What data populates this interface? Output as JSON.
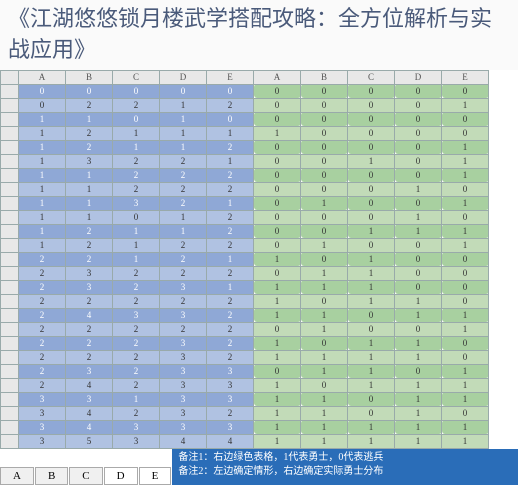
{
  "title": "《江湖悠悠锁月楼武学搭配攻略：全方位解析与实战应用》",
  "column_headers_top": [
    "A",
    "B",
    "C",
    "D",
    "E",
    "A",
    "B",
    "C",
    "D",
    "E"
  ],
  "column_headers_bottom": [
    "A",
    "B",
    "C",
    "D",
    "E"
  ],
  "colors": {
    "blue": "#8fa8d6",
    "lblue": "#b0c2e2",
    "green": "#a8d0a0",
    "lgreen": "#c2dbb8",
    "header_bg": "#e8e8e8",
    "footer_bg": "#2a6db8"
  },
  "left_rows": [
    [
      0,
      0,
      0,
      0,
      0
    ],
    [
      0,
      2,
      2,
      1,
      2
    ],
    [
      1,
      1,
      0,
      1,
      0
    ],
    [
      1,
      2,
      1,
      1,
      1
    ],
    [
      1,
      2,
      1,
      1,
      2
    ],
    [
      1,
      3,
      2,
      2,
      1
    ],
    [
      1,
      1,
      2,
      2,
      2
    ],
    [
      1,
      1,
      2,
      2,
      2
    ],
    [
      1,
      1,
      3,
      2,
      1
    ],
    [
      1,
      1,
      0,
      1,
      2
    ],
    [
      1,
      2,
      1,
      1,
      2
    ],
    [
      1,
      2,
      1,
      2,
      2
    ],
    [
      2,
      2,
      1,
      2,
      1
    ],
    [
      2,
      3,
      2,
      2,
      2
    ],
    [
      2,
      3,
      2,
      3,
      1
    ],
    [
      2,
      2,
      2,
      2,
      2
    ],
    [
      2,
      4,
      3,
      3,
      2
    ],
    [
      2,
      2,
      2,
      2,
      2
    ],
    [
      2,
      2,
      2,
      3,
      2
    ],
    [
      2,
      2,
      2,
      3,
      2
    ],
    [
      2,
      3,
      2,
      3,
      3
    ],
    [
      2,
      4,
      2,
      3,
      3
    ],
    [
      3,
      3,
      1,
      3,
      3
    ],
    [
      3,
      4,
      2,
      3,
      2
    ],
    [
      3,
      4,
      3,
      3,
      3
    ],
    [
      3,
      5,
      3,
      4,
      4
    ]
  ],
  "right_rows": [
    [
      0,
      0,
      0,
      0,
      0
    ],
    [
      0,
      0,
      0,
      0,
      1
    ],
    [
      0,
      0,
      0,
      0,
      0
    ],
    [
      1,
      0,
      0,
      0,
      0
    ],
    [
      0,
      0,
      0,
      0,
      1
    ],
    [
      0,
      0,
      1,
      0,
      1
    ],
    [
      0,
      0,
      0,
      0,
      1
    ],
    [
      0,
      0,
      0,
      1,
      0
    ],
    [
      0,
      1,
      0,
      0,
      1
    ],
    [
      0,
      0,
      0,
      1,
      0
    ],
    [
      0,
      0,
      1,
      1,
      1
    ],
    [
      0,
      1,
      0,
      0,
      1
    ],
    [
      1,
      0,
      1,
      0,
      0
    ],
    [
      0,
      1,
      1,
      0,
      0
    ],
    [
      1,
      1,
      1,
      0,
      0
    ],
    [
      1,
      0,
      1,
      1,
      0
    ],
    [
      1,
      1,
      0,
      1,
      1
    ],
    [
      0,
      1,
      0,
      0,
      1
    ],
    [
      1,
      0,
      1,
      1,
      0
    ],
    [
      1,
      1,
      1,
      1,
      0
    ],
    [
      0,
      1,
      1,
      0,
      1
    ],
    [
      1,
      0,
      1,
      1,
      1
    ],
    [
      1,
      1,
      0,
      1,
      1
    ],
    [
      1,
      1,
      0,
      1,
      0
    ],
    [
      1,
      1,
      1,
      1,
      1
    ],
    [
      1,
      1,
      1,
      1,
      1
    ]
  ],
  "footer_tabs": [
    "D",
    "E"
  ],
  "footer_notes": [
    "备注1：右边绿色表格，1代表勇士，0代表逃兵",
    "备注2：左边确定情形，右边确定实际勇士分布"
  ]
}
